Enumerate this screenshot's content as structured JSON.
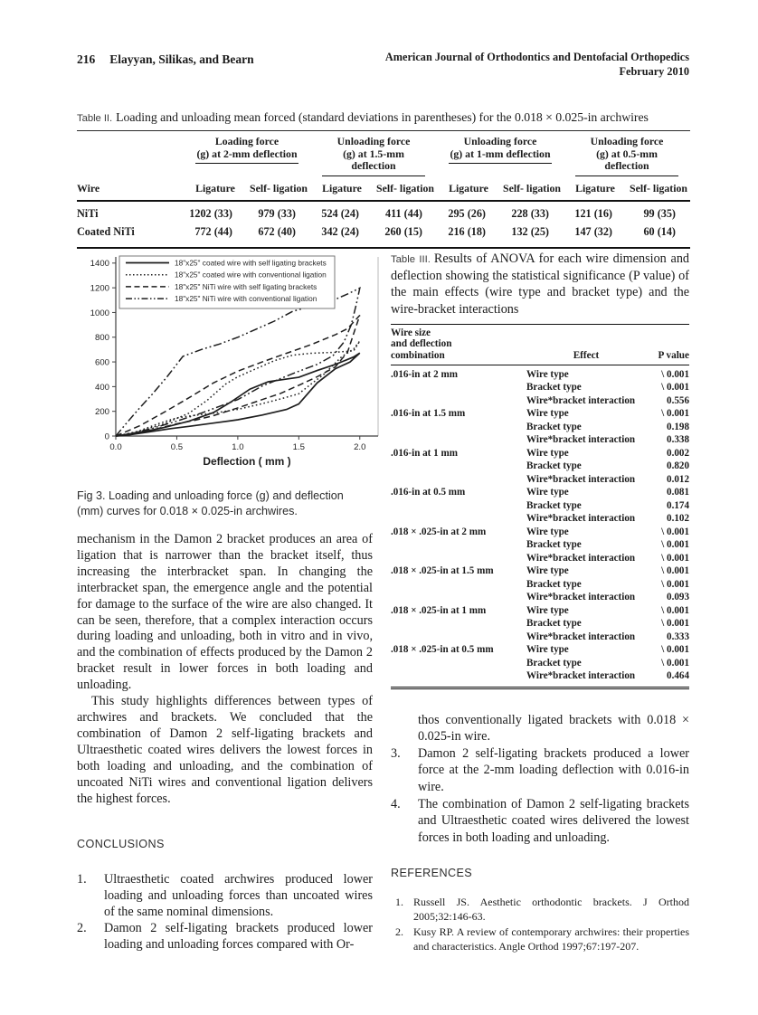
{
  "header": {
    "page_number": "216",
    "authors": "Elayyan, Silikas, and Bearn",
    "journal_line1": "American Journal of Orthodontics and Dentofacial Orthopedics",
    "journal_line2": "February 2010"
  },
  "table2": {
    "label": "Table II.",
    "title": "Loading and unloading mean forced (standard deviations in parentheses) for the 0.018 × 0.025-in archwires",
    "col_groups": [
      {
        "line1": "Loading force",
        "line2": "(g) at 2-mm deflection"
      },
      {
        "line1": "Unloading force",
        "line2": "(g) at 1.5-mm deflection"
      },
      {
        "line1": "Unloading force",
        "line2": "(g) at 1-mm deflection"
      },
      {
        "line1": "Unloading force",
        "line2": "(g) at 0.5-mm deflection"
      }
    ],
    "row_header": "Wire",
    "sub_headers": [
      "Ligature",
      "Self- ligation"
    ],
    "rows": [
      {
        "wire": "NiTi",
        "values": [
          "1202 (33)",
          "979 (33)",
          "524 (24)",
          "411 (44)",
          "295 (26)",
          "228 (33)",
          "121 (16)",
          "99 (35)"
        ]
      },
      {
        "wire": "Coated NiTi",
        "values": [
          "772 (44)",
          "672 (40)",
          "342 (24)",
          "260 (15)",
          "216 (18)",
          "132 (25)",
          "147 (32)",
          "60 (14)"
        ]
      }
    ]
  },
  "figure": {
    "caption": "Fig 3. Loading and unloading force (g) and deflection (mm) curves for 0.018 × 0.025-in archwires."
  },
  "chart_data": {
    "type": "line",
    "title": "",
    "xlabel": "Deflection ( mm )",
    "ylabel": "",
    "xlim": [
      0,
      2.15
    ],
    "ylim": [
      0,
      1450
    ],
    "xticks": [
      0.0,
      0.5,
      1.0,
      1.5,
      2.0
    ],
    "yticks": [
      0,
      200,
      400,
      600,
      800,
      1000,
      1200,
      1400
    ],
    "grid": false,
    "legend_position": "top-left",
    "series": [
      {
        "name": "18\"x25\" coated wire with self ligating brackets",
        "dash": "solid",
        "loading": [
          [
            0,
            0
          ],
          [
            0.2,
            30
          ],
          [
            0.4,
            70
          ],
          [
            0.6,
            120
          ],
          [
            0.8,
            190
          ],
          [
            0.95,
            280
          ],
          [
            1.1,
            380
          ],
          [
            1.25,
            440
          ],
          [
            1.5,
            475
          ],
          [
            1.65,
            530
          ],
          [
            1.8,
            580
          ],
          [
            1.95,
            640
          ],
          [
            2.0,
            672
          ]
        ],
        "unloading": [
          [
            1.92,
            600
          ],
          [
            1.8,
            545
          ],
          [
            1.65,
            430
          ],
          [
            1.5,
            260
          ],
          [
            1.4,
            215
          ],
          [
            1.2,
            170
          ],
          [
            1.0,
            132
          ],
          [
            0.8,
            105
          ],
          [
            0.6,
            78
          ],
          [
            0.45,
            60
          ],
          [
            0.25,
            30
          ],
          [
            0.1,
            8
          ],
          [
            0,
            0
          ]
        ]
      },
      {
        "name": "18\"x25\" coated wire with conventional ligation",
        "dash": "dotted",
        "loading": [
          [
            0,
            0
          ],
          [
            0.2,
            40
          ],
          [
            0.4,
            100
          ],
          [
            0.6,
            185
          ],
          [
            0.75,
            290
          ],
          [
            0.9,
            420
          ],
          [
            1.0,
            480
          ],
          [
            1.15,
            545
          ],
          [
            1.3,
            610
          ],
          [
            1.45,
            655
          ],
          [
            1.6,
            670
          ],
          [
            1.8,
            678
          ],
          [
            1.95,
            690
          ],
          [
            2.0,
            770
          ]
        ],
        "unloading": [
          [
            1.95,
            705
          ],
          [
            1.85,
            640
          ],
          [
            1.7,
            495
          ],
          [
            1.6,
            420
          ],
          [
            1.5,
            342
          ],
          [
            1.35,
            300
          ],
          [
            1.2,
            262
          ],
          [
            1.0,
            216
          ],
          [
            0.8,
            185
          ],
          [
            0.65,
            168
          ],
          [
            0.5,
            147
          ],
          [
            0.35,
            100
          ],
          [
            0.2,
            45
          ],
          [
            0.08,
            10
          ],
          [
            0,
            0
          ]
        ]
      },
      {
        "name": "18\"x25\" NiTi wire with self ligating brackets",
        "dash": "dashed",
        "loading": [
          [
            0,
            0
          ],
          [
            0.2,
            85
          ],
          [
            0.4,
            195
          ],
          [
            0.6,
            310
          ],
          [
            0.8,
            430
          ],
          [
            1.0,
            525
          ],
          [
            1.2,
            600
          ],
          [
            1.4,
            670
          ],
          [
            1.6,
            740
          ],
          [
            1.8,
            820
          ],
          [
            1.9,
            870
          ],
          [
            2.0,
            978
          ]
        ],
        "unloading": [
          [
            1.95,
            830
          ],
          [
            1.9,
            680
          ],
          [
            1.8,
            560
          ],
          [
            1.65,
            480
          ],
          [
            1.5,
            411
          ],
          [
            1.35,
            345
          ],
          [
            1.2,
            295
          ],
          [
            1.0,
            228
          ],
          [
            0.8,
            165
          ],
          [
            0.65,
            128
          ],
          [
            0.5,
            99
          ],
          [
            0.3,
            50
          ],
          [
            0.12,
            12
          ],
          [
            0,
            0
          ]
        ]
      },
      {
        "name": "18\"x25\" NiTi wire with conventional ligation",
        "dash": "dash-dot-dot",
        "loading": [
          [
            0,
            0
          ],
          [
            0.08,
            95
          ],
          [
            0.18,
            210
          ],
          [
            0.3,
            340
          ],
          [
            0.42,
            480
          ],
          [
            0.55,
            645
          ],
          [
            0.7,
            700
          ],
          [
            0.85,
            745
          ],
          [
            1.0,
            800
          ],
          [
            1.15,
            865
          ],
          [
            1.3,
            930
          ],
          [
            1.45,
            1010
          ],
          [
            1.6,
            1050
          ],
          [
            1.75,
            1085
          ],
          [
            1.9,
            1150
          ],
          [
            2.0,
            1198
          ]
        ],
        "unloading": [
          [
            1.97,
            1060
          ],
          [
            1.93,
            900
          ],
          [
            1.87,
            760
          ],
          [
            1.78,
            650
          ],
          [
            1.65,
            580
          ],
          [
            1.5,
            524
          ],
          [
            1.35,
            465
          ],
          [
            1.2,
            405
          ],
          [
            1.0,
            295
          ],
          [
            0.85,
            240
          ],
          [
            0.7,
            185
          ],
          [
            0.5,
            121
          ],
          [
            0.3,
            62
          ],
          [
            0.12,
            18
          ],
          [
            0,
            0
          ]
        ]
      }
    ]
  },
  "table3": {
    "label": "Table III.",
    "title": "Results of ANOVA for each wire dimension and deflection showing the statistical significance (P value) of the main effects (wire type and bracket type) and the wire-bracket interactions",
    "headers": {
      "col1_lines": [
        "Wire size",
        "and deflection",
        "combination"
      ],
      "col2": "Effect",
      "col3": "P value"
    },
    "groups": [
      {
        "label": ".016-in at 2 mm",
        "effects": [
          {
            "effect": "Wire type",
            "p": "\\ 0.001"
          },
          {
            "effect": "Bracket type",
            "p": "\\ 0.001"
          },
          {
            "effect": "Wire*bracket interaction",
            "p": "0.556"
          }
        ]
      },
      {
        "label": ".016-in at 1.5 mm",
        "effects": [
          {
            "effect": "Wire type",
            "p": "\\ 0.001"
          },
          {
            "effect": "Bracket type",
            "p": "0.198"
          },
          {
            "effect": "Wire*bracket interaction",
            "p": "0.338"
          }
        ]
      },
      {
        "label": ".016-in at 1 mm",
        "effects": [
          {
            "effect": "Wire type",
            "p": "0.002"
          },
          {
            "effect": "Bracket type",
            "p": "0.820"
          },
          {
            "effect": "Wire*bracket interaction",
            "p": "0.012"
          }
        ]
      },
      {
        "label": ".016-in at 0.5 mm",
        "effects": [
          {
            "effect": "Wire type",
            "p": "0.081"
          },
          {
            "effect": "Bracket type",
            "p": "0.174"
          },
          {
            "effect": "Wire*bracket interaction",
            "p": "0.102"
          }
        ]
      },
      {
        "label": ".018 × .025-in at 2 mm",
        "effects": [
          {
            "effect": "Wire type",
            "p": "\\ 0.001"
          },
          {
            "effect": "Bracket type",
            "p": "\\ 0.001"
          },
          {
            "effect": "Wire*bracket interaction",
            "p": "\\ 0.001"
          }
        ]
      },
      {
        "label": ".018 × .025-in at 1.5 mm",
        "effects": [
          {
            "effect": "Wire type",
            "p": "\\ 0.001"
          },
          {
            "effect": "Bracket type",
            "p": "\\ 0.001"
          },
          {
            "effect": "Wire*bracket interaction",
            "p": "0.093"
          }
        ]
      },
      {
        "label": ".018 × .025-in at 1 mm",
        "effects": [
          {
            "effect": "Wire type",
            "p": "\\ 0.001"
          },
          {
            "effect": "Bracket type",
            "p": "\\ 0.001"
          },
          {
            "effect": "Wire*bracket interaction",
            "p": "0.333"
          }
        ]
      },
      {
        "label": ".018 × .025-in at 0.5 mm",
        "effects": [
          {
            "effect": "Wire type",
            "p": "\\ 0.001"
          },
          {
            "effect": "Bracket type",
            "p": "\\ 0.001"
          },
          {
            "effect": "Wire*bracket interaction",
            "p": "0.464"
          }
        ]
      }
    ]
  },
  "body": {
    "paragraph1": "mechanism in the Damon 2 bracket produces an area of ligation that is narrower than the bracket itself, thus increasing the interbracket span. In changing the interbracket span, the emergence angle and the potential for damage to the surface of the wire are also changed. It can be seen, therefore, that a complex interaction occurs during loading and unloading, both in vitro and in vivo, and the combination of effects produced by the Damon 2 bracket result in lower forces in both loading and unloading.",
    "paragraph2": "This study highlights differences between types of archwires and brackets. We concluded that the combination of Damon 2 self-ligating brackets and Ultraesthetic coated wires delivers the lowest forces in both loading and unloading, and the combination of uncoated NiTi wires and conventional ligation delivers the highest forces."
  },
  "conclusions": {
    "heading": "CONCLUSIONS",
    "items": [
      {
        "num": "1.",
        "text": "Ultraesthetic coated archwires produced lower loading and unloading forces than uncoated wires of the same nominal dimensions."
      },
      {
        "num": "2.",
        "text": "Damon 2 self-ligating brackets produced lower loading and unloading forces compared with Or-"
      }
    ]
  },
  "right_column": {
    "continuation": "thos conventionally ligated brackets with 0.018 × 0.025-in wire.",
    "items": [
      {
        "num": "3.",
        "text": "Damon 2 self-ligating brackets produced a lower force at the 2-mm loading deflection with 0.016-in wire."
      },
      {
        "num": "4.",
        "text": "The combination of Damon 2 self-ligating brackets and Ultraesthetic coated wires delivered the lowest forces in both loading and unloading."
      }
    ]
  },
  "references": {
    "heading": "REFERENCES",
    "items": [
      {
        "num": "1.",
        "text": "Russell JS. Aesthetic orthodontic brackets. J Orthod 2005;32:146-63."
      },
      {
        "num": "2.",
        "text": "Kusy RP. A review of contemporary archwires: their properties and characteristics. Angle Orthod 1997;67:197-207."
      }
    ]
  }
}
